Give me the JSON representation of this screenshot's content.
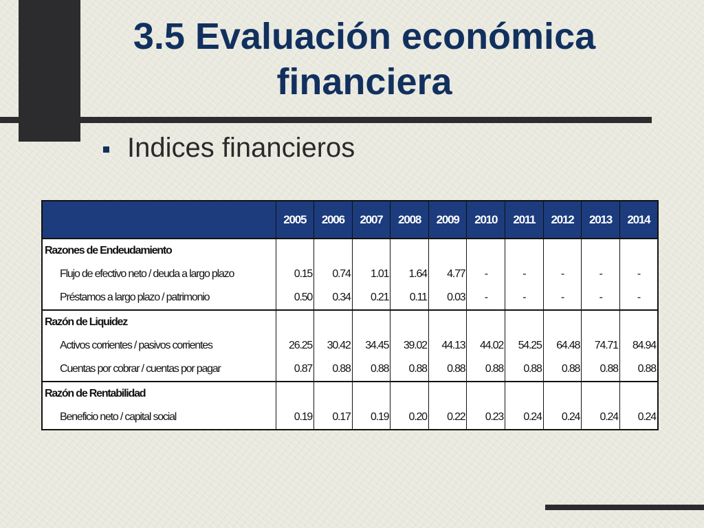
{
  "title": "3.5 Evaluación económica financiera",
  "bullet": "Indices financieros",
  "table": {
    "years": [
      "2005",
      "2006",
      "2007",
      "2008",
      "2009",
      "2010",
      "2011",
      "2012",
      "2013",
      "2014"
    ],
    "sections": [
      {
        "name": "Razones de Endeudamiento",
        "rows": [
          {
            "label": "Flujo de efectivo neto / deuda a largo plazo",
            "values": [
              "0.15",
              "0.74",
              "1.01",
              "1.64",
              "4.77",
              "-",
              "-",
              "-",
              "-",
              "-"
            ]
          },
          {
            "label": "Préstamos a largo plazo / patrimonio",
            "values": [
              "0.50",
              "0.34",
              "0.21",
              "0.11",
              "0.03",
              "-",
              "-",
              "-",
              "-",
              "-"
            ]
          }
        ]
      },
      {
        "name": "Razón de Liquidez",
        "rows": [
          {
            "label": "Activos corrientes / pasivos corrientes",
            "values": [
              "26.25",
              "30.42",
              "34.45",
              "39.02",
              "44.13",
              "44.02",
              "54.25",
              "64.48",
              "74.71",
              "84.94"
            ]
          },
          {
            "label": "Cuentas por cobrar / cuentas por pagar",
            "values": [
              "0.87",
              "0.88",
              "0.88",
              "0.88",
              "0.88",
              "0.88",
              "0.88",
              "0.88",
              "0.88",
              "0.88"
            ]
          }
        ]
      },
      {
        "name": "Razón de Rentabilidad",
        "rows": [
          {
            "label": "Beneficio neto / capital social",
            "values": [
              "0.19",
              "0.17",
              "0.19",
              "0.20",
              "0.22",
              "0.23",
              "0.24",
              "0.24",
              "0.24",
              "0.24"
            ]
          }
        ]
      }
    ]
  },
  "colors": {
    "title": "#11305e",
    "header_bg": "#1c3c7e",
    "dark_bar": "#2c2c2e"
  }
}
